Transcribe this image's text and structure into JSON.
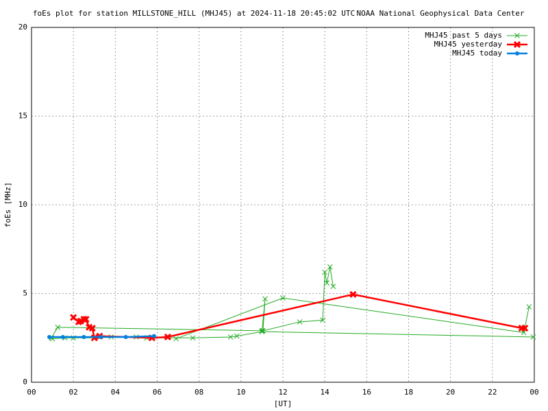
{
  "chart_data": {
    "type": "line",
    "title": "foEs plot for station MILLSTONE_HILL (MHJ45) at 2024-11-18 20:45:02 UTC",
    "subtitle": "NOAA National Geophysical Data Center",
    "x_label": "[UT]",
    "y_label": "foEs [MHz]",
    "xlim": [
      0,
      24
    ],
    "xticks": [
      {
        "value": 0,
        "label": "00"
      },
      {
        "value": 2,
        "label": "02"
      },
      {
        "value": 4,
        "label": "04"
      },
      {
        "value": 6,
        "label": "06"
      },
      {
        "value": 8,
        "label": "08"
      },
      10,
      12,
      14,
      16,
      18,
      20,
      22,
      {
        "value": 24,
        "label": "00"
      }
    ],
    "ylim": [
      0,
      20
    ],
    "yticks": [
      0,
      5,
      10,
      15,
      20
    ],
    "grid": true,
    "legend": "top-right",
    "series": [
      {
        "name": "MHJ45 past 5 days",
        "color": "#22aa22",
        "marker": "cross",
        "x": [
          0.95,
          1.25,
          11.0,
          11.15,
          11.05,
          12.8,
          13.9,
          14.0,
          14.1,
          14.25,
          14.4,
          14.5,
          6.9,
          12.0,
          23.5,
          23.75,
          23.8,
          1.0,
          1.6,
          2.0,
          3.0,
          3.8,
          5.0,
          5.5,
          7.7,
          9.5,
          9.8,
          11.0,
          23.95
        ],
        "values": [
          2.5,
          3.1,
          2.9,
          4.7,
          2.9,
          3.4,
          3.5,
          6.2,
          5.6,
          6.5,
          5.4,
          null,
          2.45,
          4.75,
          2.8,
          4.25,
          null,
          2.45,
          2.5,
          2.5,
          2.5,
          2.55,
          2.55,
          2.5,
          2.5,
          2.55,
          2.6,
          2.85,
          2.55
        ]
      },
      {
        "name": "MHJ45 yesterday",
        "color": "#ff0000",
        "marker": "bold-cross",
        "x": [
          2.0,
          2.25,
          2.35,
          2.5,
          2.6,
          2.75,
          2.9,
          3.0,
          3.25,
          5.75,
          6.5,
          15.35,
          23.4,
          23.55
        ],
        "values": [
          3.65,
          3.4,
          3.45,
          3.55,
          3.55,
          3.1,
          3.05,
          2.5,
          2.6,
          2.5,
          2.55,
          4.95,
          3.05,
          3.05
        ]
      },
      {
        "name": "MHJ45 today",
        "color": "#0080e0",
        "marker": "dot",
        "x": [
          0.85,
          1.5,
          2.5,
          3.3,
          4.5,
          5.85
        ],
        "values": [
          2.55,
          2.55,
          2.55,
          2.55,
          2.55,
          2.6
        ]
      }
    ]
  }
}
